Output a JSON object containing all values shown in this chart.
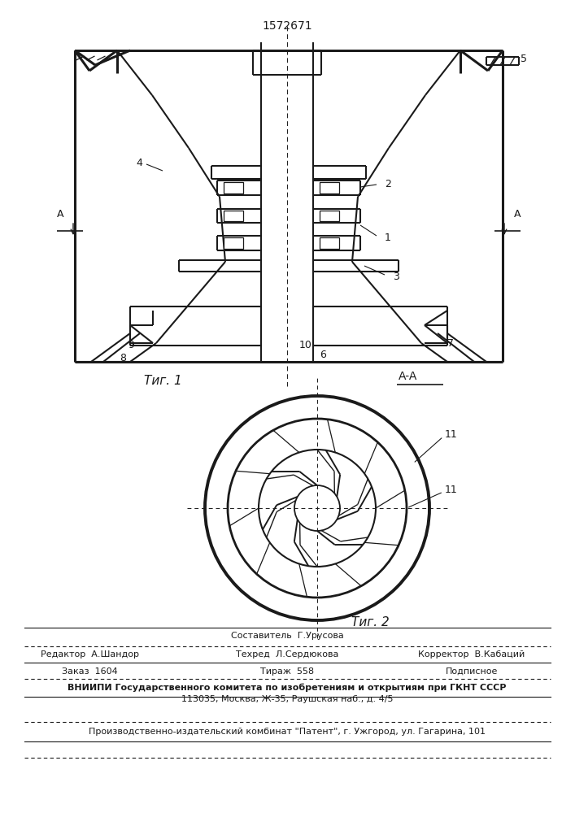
{
  "patent_number": "1572671",
  "bg_color": "#ffffff",
  "line_color": "#1a1a1a",
  "bottom_text": {
    "sostavitel": "Составитель  Г.Урусова",
    "redaktor": "Редактор  А.Шандор",
    "tehred": "Техред  Л.Сердюкова",
    "korrektor": "Корректор  В.Кабаций",
    "zakaz": "Заказ  1604",
    "tirazh": "Тираж  558",
    "podpisnoe": "Подписное",
    "vniipи": "ВНИИПИ Государственного комитета по изобретениям и открытиям при ГКНТ СССР",
    "address": "113035, Москва, Ж-35, Раушская наб., д. 4/5",
    "kombinat": "Производственно-издательский комбинат \"Патент\", г. Ужгород, ул. Гагарина, 101"
  }
}
